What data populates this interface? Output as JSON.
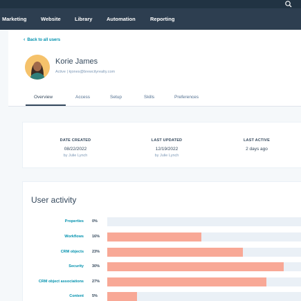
{
  "topnav": {
    "items": [
      "Marketing",
      "Website",
      "Library",
      "Automation",
      "Reporting"
    ]
  },
  "profile": {
    "back_link": "Back to all users",
    "name": "Korie James",
    "status": "Active",
    "email": "kjones@brewcityrealty.com",
    "tabs": [
      "Overview",
      "Access",
      "Setup",
      "Skills",
      "Preferences"
    ],
    "active_tab": "Overview"
  },
  "stats": [
    {
      "label": "DATE CREATED",
      "value": "08/22/2022",
      "sub": "by Julie Lynch"
    },
    {
      "label": "LAST UPDATED",
      "value": "12/19/2022",
      "sub": "by Julie Lynch"
    },
    {
      "label": "LAST ACTIVE",
      "value": "2 days ago",
      "sub": ""
    }
  ],
  "activity": {
    "title": "User activity",
    "rows": [
      {
        "label": "Properties",
        "pct": "0%",
        "value": 0
      },
      {
        "label": "Workflows",
        "pct": "16%",
        "value": 16
      },
      {
        "label": "CRM objects",
        "pct": "23%",
        "value": 23
      },
      {
        "label": "Security",
        "pct": "30%",
        "value": 30
      },
      {
        "label": "CRM object associations",
        "pct": "27%",
        "value": 27
      },
      {
        "label": "Content",
        "pct": "5%",
        "value": 5
      }
    ]
  },
  "colors": {
    "nav_bg": "#2d3e50",
    "link": "#0091ae",
    "bar": "#f8a896",
    "track": "#eaf0f6"
  }
}
